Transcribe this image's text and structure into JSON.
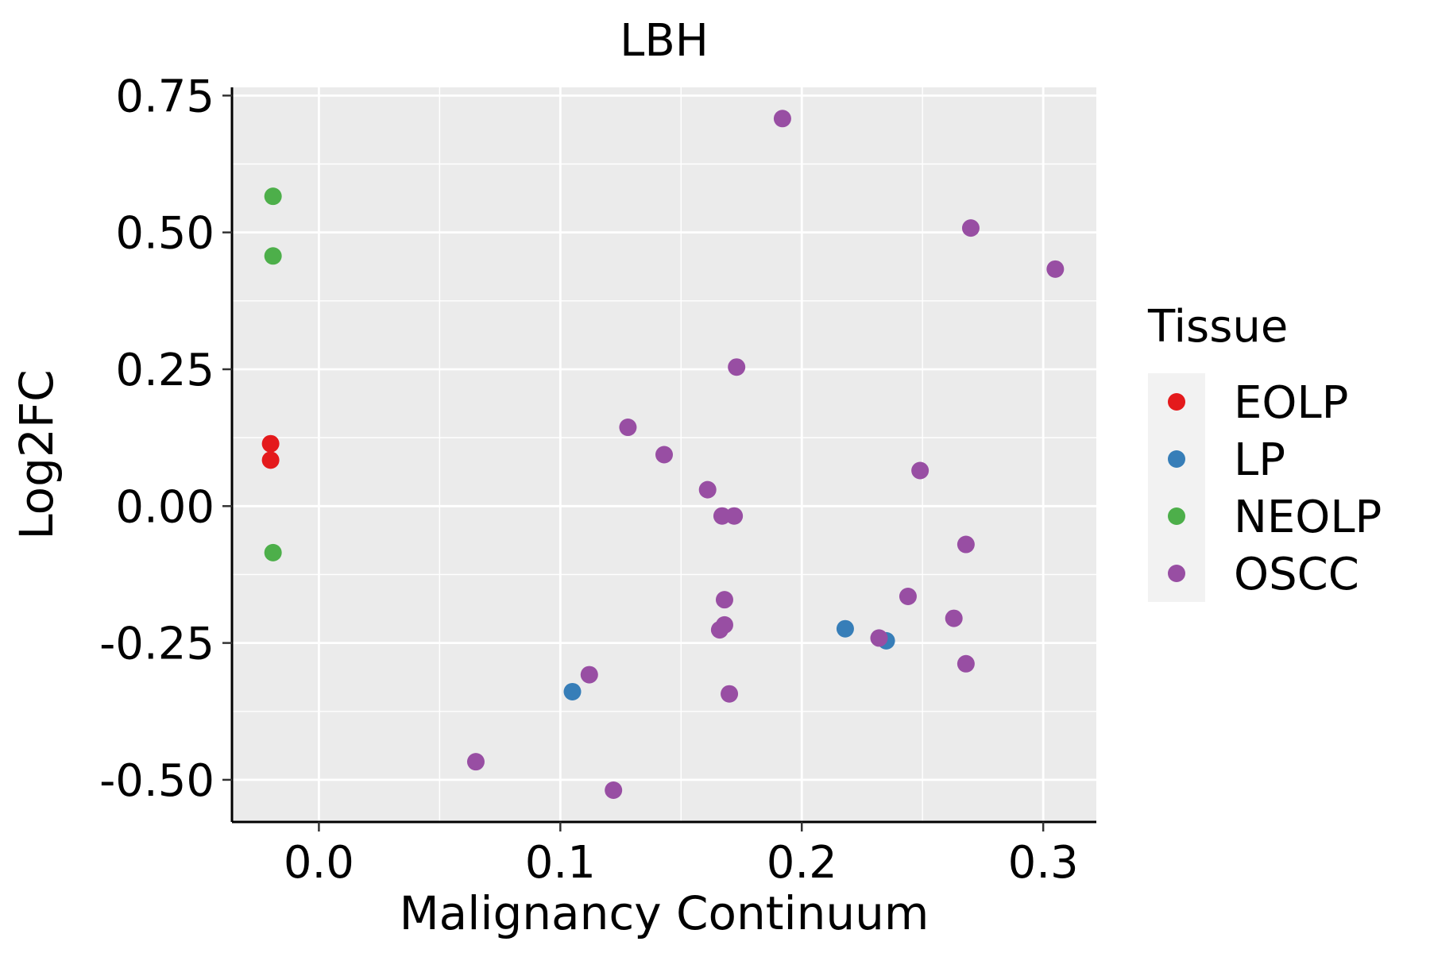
{
  "chart_data": {
    "type": "scatter",
    "title": "LBH",
    "xlabel": "Malignancy Continuum",
    "ylabel": "Log2FC",
    "xlim": [
      -0.036,
      0.322
    ],
    "ylim": [
      -0.577,
      0.765
    ],
    "x_ticks": [
      0.0,
      0.1,
      0.2,
      0.3
    ],
    "x_tick_labels": [
      "0.0",
      "0.1",
      "0.2",
      "0.3"
    ],
    "y_ticks": [
      -0.5,
      -0.25,
      0.0,
      0.25,
      0.5,
      0.75
    ],
    "y_tick_labels": [
      "-0.50",
      "-0.25",
      "0.00",
      "0.25",
      "0.50",
      "0.75"
    ],
    "grid": true,
    "panel_background": "#ebebeb",
    "legend": {
      "title": "Tissue",
      "placement": "right",
      "entries": [
        {
          "name": "EOLP",
          "color": "#e41a1c"
        },
        {
          "name": "LP",
          "color": "#377eb8"
        },
        {
          "name": "NEOLP",
          "color": "#4daf4a"
        },
        {
          "name": "OSCC",
          "color": "#984ea3"
        }
      ]
    },
    "series": [
      {
        "name": "EOLP",
        "color": "#e41a1c",
        "points": [
          {
            "x": -0.02,
            "y": 0.114
          },
          {
            "x": -0.02,
            "y": 0.084
          }
        ]
      },
      {
        "name": "LP",
        "color": "#377eb8",
        "points": [
          {
            "x": 0.105,
            "y": -0.339
          },
          {
            "x": 0.218,
            "y": -0.224
          },
          {
            "x": 0.235,
            "y": -0.246
          }
        ]
      },
      {
        "name": "NEOLP",
        "color": "#4daf4a",
        "points": [
          {
            "x": -0.019,
            "y": 0.566
          },
          {
            "x": -0.019,
            "y": 0.457
          },
          {
            "x": -0.019,
            "y": -0.085
          }
        ]
      },
      {
        "name": "OSCC",
        "color": "#984ea3",
        "points": [
          {
            "x": 0.192,
            "y": 0.708
          },
          {
            "x": 0.27,
            "y": 0.508
          },
          {
            "x": 0.305,
            "y": 0.433
          },
          {
            "x": 0.173,
            "y": 0.254
          },
          {
            "x": 0.128,
            "y": 0.144
          },
          {
            "x": 0.143,
            "y": 0.094
          },
          {
            "x": 0.161,
            "y": 0.03
          },
          {
            "x": 0.167,
            "y": -0.018
          },
          {
            "x": 0.172,
            "y": -0.018
          },
          {
            "x": 0.249,
            "y": 0.065
          },
          {
            "x": 0.268,
            "y": -0.07
          },
          {
            "x": 0.168,
            "y": -0.171
          },
          {
            "x": 0.168,
            "y": -0.217
          },
          {
            "x": 0.166,
            "y": -0.226
          },
          {
            "x": 0.244,
            "y": -0.165
          },
          {
            "x": 0.263,
            "y": -0.205
          },
          {
            "x": 0.232,
            "y": -0.241
          },
          {
            "x": 0.268,
            "y": -0.288
          },
          {
            "x": 0.112,
            "y": -0.308
          },
          {
            "x": 0.17,
            "y": -0.343
          },
          {
            "x": 0.065,
            "y": -0.467
          },
          {
            "x": 0.122,
            "y": -0.519
          }
        ]
      }
    ]
  }
}
